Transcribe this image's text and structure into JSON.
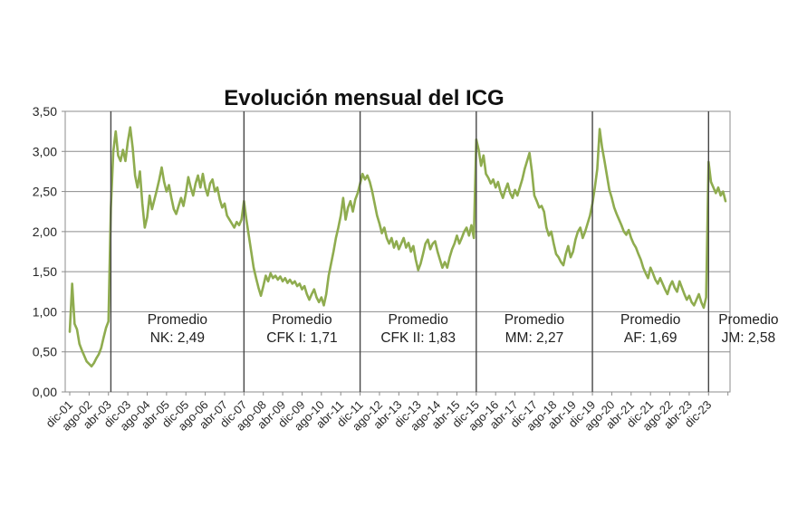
{
  "chart_data": {
    "type": "line",
    "title": "Evolución mensual del ICG",
    "xlabel": "",
    "ylabel": "",
    "ylim": [
      0,
      3.5
    ],
    "grid": true,
    "legend": "none",
    "y_tick_values": [
      0,
      0.5,
      1,
      1.5,
      2,
      2.5,
      3,
      3.5
    ],
    "y_tick_labels": [
      "0,00",
      "0,50",
      "1,00",
      "1,50",
      "2,00",
      "2,50",
      "3,00",
      "3,50"
    ],
    "x_tick_labels": [
      "dic-01",
      "ago-02",
      "abr-03",
      "dic-03",
      "ago-04",
      "abr-05",
      "dic-05",
      "ago-06",
      "abr-07",
      "dic-07",
      "ago-08",
      "abr-09",
      "dic-09",
      "ago-10",
      "abr-11",
      "dic-11",
      "ago-12",
      "abr-13",
      "dic-13",
      "ago-14",
      "abr-15",
      "dic-15",
      "ago-16",
      "abr-17",
      "dic-17",
      "ago-18",
      "abr-19",
      "dic-19",
      "ago-20",
      "abr-21",
      "dic-21",
      "ago-22",
      "abr-23",
      "dic-23"
    ],
    "x_tick_every_n_months": 8,
    "series": [
      {
        "name": "ICG mensual",
        "color": "#8FAC4F",
        "start_label": "dic-01",
        "frequency": "monthly",
        "values": [
          0.75,
          1.35,
          0.85,
          0.78,
          0.6,
          0.52,
          0.45,
          0.38,
          0.35,
          0.32,
          0.36,
          0.42,
          0.47,
          0.55,
          0.68,
          0.8,
          0.88,
          2.3,
          3.0,
          3.25,
          2.95,
          2.88,
          3.02,
          2.88,
          3.12,
          3.3,
          3.05,
          2.7,
          2.55,
          2.75,
          2.35,
          2.05,
          2.18,
          2.45,
          2.28,
          2.4,
          2.52,
          2.65,
          2.8,
          2.62,
          2.5,
          2.58,
          2.42,
          2.28,
          2.22,
          2.32,
          2.42,
          2.32,
          2.48,
          2.68,
          2.55,
          2.45,
          2.6,
          2.7,
          2.55,
          2.72,
          2.55,
          2.45,
          2.6,
          2.65,
          2.5,
          2.55,
          2.4,
          2.3,
          2.35,
          2.2,
          2.15,
          2.1,
          2.05,
          2.12,
          2.08,
          2.15,
          2.38,
          2.15,
          1.95,
          1.75,
          1.55,
          1.42,
          1.3,
          1.2,
          1.32,
          1.45,
          1.38,
          1.48,
          1.42,
          1.45,
          1.4,
          1.44,
          1.38,
          1.42,
          1.36,
          1.4,
          1.35,
          1.38,
          1.32,
          1.35,
          1.28,
          1.32,
          1.22,
          1.15,
          1.22,
          1.28,
          1.18,
          1.12,
          1.18,
          1.08,
          1.22,
          1.45,
          1.6,
          1.75,
          1.92,
          2.05,
          2.2,
          2.42,
          2.15,
          2.3,
          2.38,
          2.25,
          2.4,
          2.48,
          2.6,
          2.72,
          2.65,
          2.7,
          2.62,
          2.5,
          2.35,
          2.2,
          2.1,
          1.98,
          2.05,
          1.92,
          1.85,
          1.92,
          1.8,
          1.88,
          1.78,
          1.85,
          1.92,
          1.8,
          1.86,
          1.75,
          1.82,
          1.65,
          1.52,
          1.6,
          1.72,
          1.85,
          1.9,
          1.78,
          1.85,
          1.88,
          1.75,
          1.65,
          1.55,
          1.62,
          1.55,
          1.68,
          1.78,
          1.85,
          1.95,
          1.85,
          1.92,
          2.0,
          2.05,
          1.95,
          2.08,
          1.92,
          3.15,
          3.02,
          2.82,
          2.95,
          2.72,
          2.67,
          2.6,
          2.65,
          2.55,
          2.62,
          2.5,
          2.42,
          2.52,
          2.6,
          2.48,
          2.42,
          2.52,
          2.45,
          2.55,
          2.65,
          2.78,
          2.88,
          2.98,
          2.75,
          2.45,
          2.38,
          2.3,
          2.32,
          2.25,
          2.05,
          1.95,
          2.0,
          1.85,
          1.72,
          1.68,
          1.62,
          1.58,
          1.72,
          1.82,
          1.68,
          1.75,
          1.9,
          2.0,
          2.05,
          1.92,
          2.0,
          2.1,
          2.2,
          2.35,
          2.55,
          2.78,
          3.28,
          3.05,
          2.88,
          2.7,
          2.52,
          2.42,
          2.3,
          2.22,
          2.15,
          2.08,
          2.0,
          1.96,
          2.02,
          1.92,
          1.85,
          1.8,
          1.72,
          1.65,
          1.55,
          1.48,
          1.42,
          1.55,
          1.48,
          1.4,
          1.35,
          1.42,
          1.35,
          1.28,
          1.22,
          1.32,
          1.38,
          1.3,
          1.25,
          1.38,
          1.3,
          1.22,
          1.15,
          1.2,
          1.12,
          1.08,
          1.15,
          1.22,
          1.12,
          1.05,
          1.18,
          2.87,
          2.62,
          2.55,
          2.48,
          2.55,
          2.45,
          2.5,
          2.38
        ]
      }
    ],
    "divider_months": [
      17,
      72,
      120,
      168,
      216,
      264
    ],
    "president_periods": [
      {
        "label_line1": "Promedio",
        "label_line2": "NK: 2,49",
        "average": 2.49,
        "start_month": 17,
        "end_month": 72
      },
      {
        "label_line1": "Promedio",
        "label_line2": "CFK I: 1,71",
        "average": 1.71,
        "start_month": 72,
        "end_month": 120
      },
      {
        "label_line1": "Promedio",
        "label_line2": "CFK II: 1,83",
        "average": 1.83,
        "start_month": 120,
        "end_month": 168
      },
      {
        "label_line1": "Promedio",
        "label_line2": "MM: 2,27",
        "average": 2.27,
        "start_month": 168,
        "end_month": 216
      },
      {
        "label_line1": "Promedio",
        "label_line2": "AF: 1,69",
        "average": 1.69,
        "start_month": 216,
        "end_month": 264
      },
      {
        "label_line1": "Promedio",
        "label_line2": "JM: 2,58",
        "average": 2.58,
        "start_month": 264,
        "end_month": 271,
        "label_center_month": 280.5
      }
    ],
    "colors": {
      "line": "#8FAC4F",
      "grid": "#8C8C8C",
      "plot_border": "#8C8C8C",
      "divider": "#464646",
      "text": "#262626",
      "background": "#ffffff"
    }
  }
}
